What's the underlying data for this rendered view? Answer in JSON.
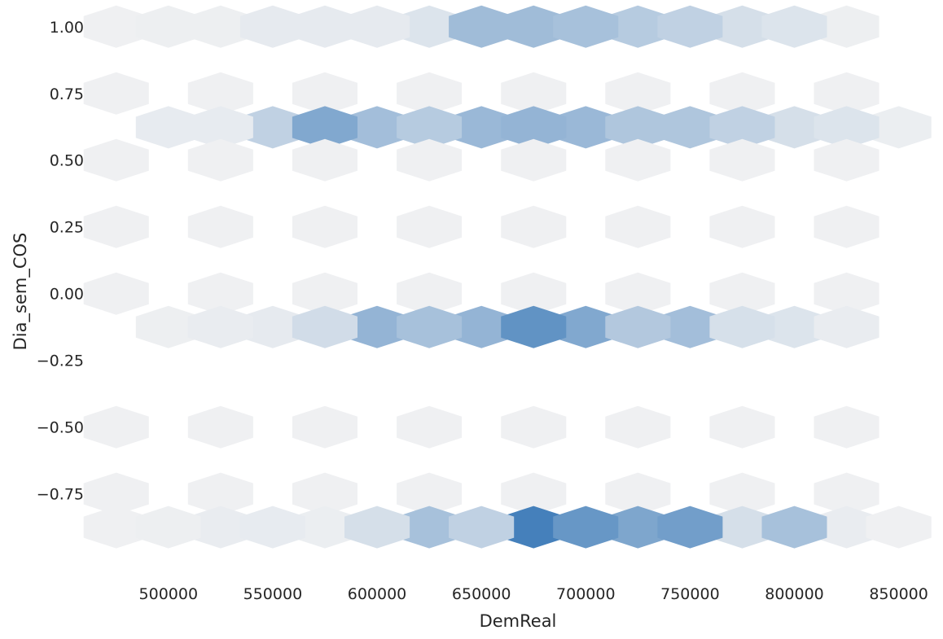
{
  "chart_data": {
    "type": "hexbin",
    "title": "",
    "xlabel": "DemReal",
    "ylabel": "Dia_sem_COS",
    "xlim": [
      463000,
      872000
    ],
    "ylim": [
      -1.05,
      1.1
    ],
    "x_ticks": [
      500000,
      550000,
      600000,
      650000,
      700000,
      750000,
      800000,
      850000
    ],
    "x_tick_labels": [
      "500000",
      "550000",
      "600000",
      "650000",
      "700000",
      "750000",
      "800000",
      "850000"
    ],
    "y_ticks": [
      1.0,
      0.75,
      0.5,
      0.25,
      0.0,
      -0.25,
      -0.5,
      -0.75
    ],
    "y_tick_labels": [
      "1.00",
      "0.75",
      "0.50",
      "0.25",
      "0.00",
      "−0.25",
      "−0.50",
      "−0.75"
    ],
    "grid": false,
    "colormap": {
      "low": "#eff0f2",
      "high": "#3274b5"
    },
    "background_color": "#eaeaf2",
    "hex_rows": [
      {
        "y": 1.0,
        "x": [
          475000,
          525000,
          575000,
          625000,
          675000,
          725000,
          775000,
          825000
        ],
        "density": [
          0.0,
          0.01,
          0.05,
          0.1,
          0.42,
          0.3,
          0.14,
          0.01
        ]
      },
      {
        "y": 1.0,
        "x": [
          500000,
          550000,
          600000,
          650000,
          700000,
          750000,
          800000
        ],
        "density": [
          0.01,
          0.05,
          0.05,
          0.42,
          0.38,
          0.25,
          0.1
        ]
      },
      {
        "y": 0.75,
        "x": [
          475000,
          525000,
          575000,
          625000,
          675000,
          725000,
          775000,
          825000
        ],
        "density": [
          0.0,
          0.0,
          0.0,
          0.0,
          0.0,
          0.0,
          0.0,
          0.0
        ]
      },
      {
        "y": 0.623,
        "x": [
          500000,
          550000,
          600000,
          650000,
          700000,
          750000,
          800000,
          850000
        ],
        "density": [
          0.04,
          0.25,
          0.4,
          0.45,
          0.45,
          0.34,
          0.14,
          0.02
        ]
      },
      {
        "y": 0.623,
        "x": [
          525000,
          575000,
          625000,
          675000,
          725000,
          775000,
          825000
        ],
        "density": [
          0.04,
          0.58,
          0.3,
          0.48,
          0.34,
          0.25,
          0.1
        ]
      },
      {
        "y": 0.5,
        "x": [
          475000,
          525000,
          575000,
          625000,
          675000,
          725000,
          775000,
          825000
        ],
        "density": [
          0.0,
          0.0,
          0.0,
          0.0,
          0.0,
          0.0,
          0.0,
          0.0
        ]
      },
      {
        "y": 0.25,
        "x": [
          475000,
          525000,
          575000,
          625000,
          675000,
          725000,
          775000,
          825000
        ],
        "density": [
          0.0,
          0.0,
          0.0,
          0.0,
          0.0,
          0.0,
          0.0,
          0.0
        ]
      },
      {
        "y": 0.0,
        "x": [
          475000,
          525000,
          575000,
          625000,
          675000,
          725000,
          775000,
          825000
        ],
        "density": [
          0.0,
          0.0,
          0.0,
          0.0,
          0.0,
          0.0,
          0.0,
          0.0
        ]
      },
      {
        "y": -0.125,
        "x": [
          500000,
          550000,
          600000,
          650000,
          700000,
          750000,
          800000
        ],
        "density": [
          0.01,
          0.05,
          0.48,
          0.48,
          0.58,
          0.4,
          0.1
        ]
      },
      {
        "y": -0.125,
        "x": [
          525000,
          575000,
          625000,
          675000,
          725000,
          775000,
          825000
        ],
        "density": [
          0.03,
          0.16,
          0.38,
          0.75,
          0.32,
          0.13,
          0.03
        ]
      },
      {
        "y": -0.5,
        "x": [
          475000,
          525000,
          575000,
          625000,
          675000,
          725000,
          775000,
          825000
        ],
        "density": [
          0.0,
          0.0,
          0.0,
          0.0,
          0.0,
          0.0,
          0.0,
          0.0
        ]
      },
      {
        "y": -0.75,
        "x": [
          475000,
          525000,
          575000,
          625000,
          675000,
          725000,
          775000,
          825000
        ],
        "density": [
          0.0,
          0.0,
          0.0,
          0.0,
          0.0,
          0.0,
          0.0,
          0.0
        ]
      },
      {
        "y": -0.875,
        "x": [
          475000,
          525000,
          575000,
          625000,
          675000,
          725000,
          775000,
          825000,
          850000
        ],
        "density": [
          0.0,
          0.03,
          0.02,
          0.38,
          0.9,
          0.6,
          0.14,
          0.03,
          0.0
        ]
      },
      {
        "y": -0.875,
        "x": [
          500000,
          550000,
          600000,
          650000,
          700000,
          750000,
          800000
        ],
        "density": [
          0.01,
          0.04,
          0.14,
          0.25,
          0.72,
          0.66,
          0.38
        ]
      }
    ]
  }
}
